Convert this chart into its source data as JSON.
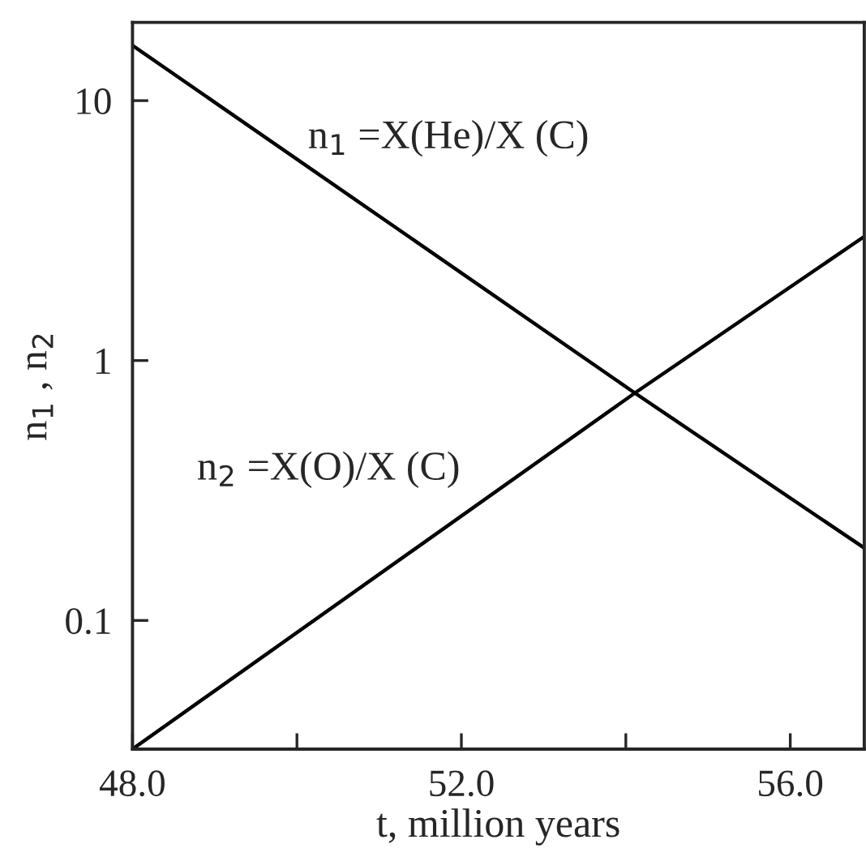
{
  "chart_data": {
    "type": "line",
    "xlabel": "t, million years",
    "ylabel": "n$_{1}$ , n$_{2}$",
    "log": "y",
    "xlim": [
      48,
      56.9
    ],
    "ylim": [
      0.032,
      20
    ],
    "xticks": [
      {
        "value": 48,
        "label": "48.0"
      },
      {
        "value": 50,
        "label": null
      },
      {
        "value": 52,
        "label": "52.0"
      },
      {
        "value": 54,
        "label": null
      },
      {
        "value": 56,
        "label": "56.0"
      }
    ],
    "yticks": [
      {
        "value": 0.1,
        "label": "0.1"
      },
      1,
      10
    ],
    "x": [
      48,
      54.11,
      56.9
    ],
    "series": [
      {
        "color": "#000000",
        "values": [
          16.3,
          0.75,
          0.19
        ]
      },
      {
        "color": "#000000",
        "values": [
          0.032,
          0.75,
          3.0
        ]
      }
    ],
    "annotations": [
      "n$_{1}$ =X(He)/X (C)",
      "n$_{2}$ =X(O)/X (C)"
    ],
    "grid": false,
    "legend": false,
    "marker": "none",
    "line_style": "solid"
  }
}
